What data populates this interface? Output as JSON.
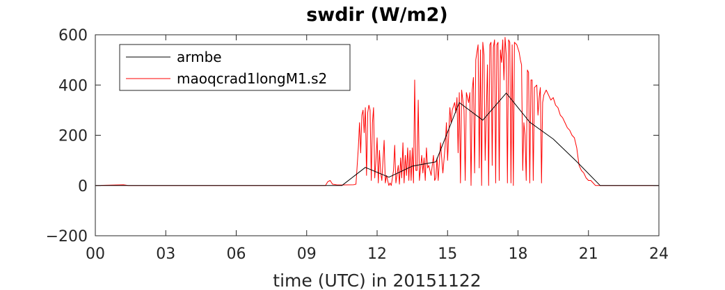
{
  "chart_data": {
    "type": "line",
    "title": "swdir  (W/m2)",
    "xlabel": "time (UTC) in 20151122",
    "ylabel": "",
    "xlim": [
      0,
      24
    ],
    "ylim": [
      -200,
      600
    ],
    "xticks": [
      0,
      3,
      6,
      9,
      12,
      15,
      18,
      21,
      24
    ],
    "xtick_labels": [
      "00",
      "03",
      "06",
      "09",
      "12",
      "15",
      "18",
      "21",
      "24"
    ],
    "yticks": [
      -200,
      0,
      200,
      400,
      600
    ],
    "ytick_labels": [
      "−200",
      "0",
      "200",
      "400",
      "600"
    ],
    "grid": false,
    "legend_position": "top-left",
    "series": [
      {
        "name": "armbe",
        "color": "#000000",
        "x": [
          0,
          10.5,
          11.5,
          12.5,
          13.5,
          14.5,
          15.5,
          16.5,
          17.5,
          18.5,
          19.5,
          20.5,
          21.5,
          24
        ],
        "y": [
          0,
          0,
          72,
          33,
          77,
          94,
          330,
          260,
          368,
          252,
          185,
          95,
          0,
          0
        ]
      },
      {
        "name": "maoqcrad1longM1.s2",
        "color": "#ff0000",
        "x": [
          0,
          1.2,
          1.4,
          9.8,
          9.9,
          10.0,
          10.1,
          10.3,
          10.5,
          11.0,
          11.1,
          11.2,
          11.25,
          11.3,
          11.35,
          11.4,
          11.45,
          11.5,
          11.55,
          11.6,
          11.65,
          11.7,
          11.75,
          11.8,
          11.85,
          11.9,
          11.95,
          12.0,
          12.05,
          12.1,
          12.15,
          12.2,
          12.3,
          12.35,
          12.4,
          12.5,
          12.55,
          12.6,
          12.7,
          12.75,
          12.8,
          12.9,
          12.95,
          13.0,
          13.05,
          13.1,
          13.15,
          13.2,
          13.25,
          13.3,
          13.35,
          13.4,
          13.45,
          13.5,
          13.55,
          13.6,
          13.65,
          13.7,
          13.75,
          13.8,
          13.9,
          13.95,
          14.0,
          14.05,
          14.1,
          14.15,
          14.2,
          14.3,
          14.4,
          14.45,
          14.5,
          14.55,
          14.6,
          14.7,
          14.75,
          14.8,
          14.9,
          14.95,
          15.0,
          15.05,
          15.1,
          15.15,
          15.2,
          15.3,
          15.35,
          15.4,
          15.45,
          15.5,
          15.55,
          15.6,
          15.65,
          15.7,
          15.75,
          15.8,
          15.9,
          15.95,
          16.0,
          16.05,
          16.1,
          16.15,
          16.2,
          16.3,
          16.35,
          16.4,
          16.45,
          16.5,
          16.55,
          16.6,
          16.7,
          16.75,
          16.8,
          16.85,
          16.9,
          16.95,
          17.0,
          17.05,
          17.1,
          17.15,
          17.2,
          17.25,
          17.3,
          17.35,
          17.4,
          17.45,
          17.5,
          17.55,
          17.6,
          17.65,
          17.7,
          17.75,
          17.8,
          17.85,
          17.95,
          18.05,
          18.1,
          18.15,
          18.2,
          18.25,
          18.3,
          18.35,
          18.4,
          18.45,
          18.5,
          18.55,
          18.6,
          18.65,
          18.7,
          18.8,
          18.85,
          18.9,
          18.95,
          19.0,
          19.05,
          19.1,
          19.2,
          19.3,
          19.4,
          19.5,
          19.6,
          19.7,
          19.8,
          19.9,
          20.0,
          20.1,
          20.2,
          20.3,
          20.4,
          20.5,
          20.6,
          20.7,
          20.8,
          20.9,
          21.0,
          21.1,
          21.2,
          21.3,
          21.4,
          24
        ],
        "y": [
          0,
          3,
          0,
          0,
          15,
          20,
          5,
          2,
          2,
          3,
          5,
          150,
          250,
          130,
          280,
          300,
          210,
          310,
          40,
          290,
          320,
          300,
          20,
          250,
          310,
          30,
          100,
          190,
          10,
          140,
          50,
          20,
          180,
          10,
          40,
          0,
          10,
          0,
          60,
          160,
          10,
          80,
          5,
          110,
          30,
          170,
          10,
          120,
          40,
          150,
          20,
          140,
          20,
          150,
          10,
          420,
          60,
          60,
          340,
          20,
          120,
          50,
          110,
          20,
          150,
          70,
          80,
          40,
          120,
          20,
          30,
          110,
          20,
          170,
          110,
          50,
          160,
          250,
          100,
          200,
          310,
          250,
          300,
          330,
          290,
          350,
          130,
          370,
          10,
          380,
          340,
          300,
          20,
          370,
          330,
          370,
          0,
          380,
          430,
          50,
          500,
          560,
          70,
          540,
          0,
          570,
          520,
          100,
          480,
          0,
          560,
          570,
          80,
          550,
          580,
          10,
          560,
          570,
          20,
          540,
          490,
          580,
          420,
          590,
          520,
          10,
          580,
          570,
          10,
          560,
          0,
          570,
          560,
          530,
          500,
          480,
          60,
          250,
          200,
          20,
          460,
          450,
          10,
          420,
          420,
          20,
          390,
          400,
          280,
          350,
          390,
          10,
          330,
          360,
          380,
          360,
          340,
          350,
          320,
          310,
          280,
          270,
          250,
          230,
          220,
          200,
          190,
          150,
          80,
          60,
          50,
          30,
          20,
          20,
          10,
          0,
          0,
          0
        ]
      }
    ]
  }
}
